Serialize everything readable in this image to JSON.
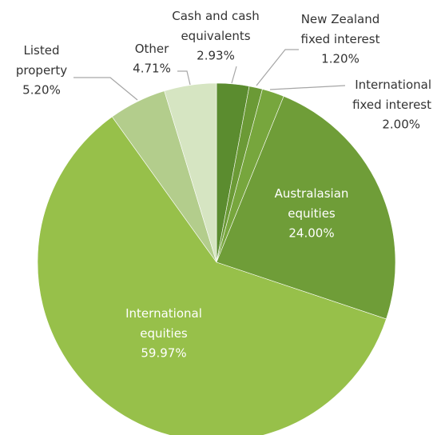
{
  "chart_data": {
    "type": "pie",
    "categories": [
      "Cash and cash\nequivalents",
      "New Zealand\nfixed interest",
      "International\nfixed interest",
      "Australasian\nequities",
      "International\nequities",
      "Listed\nproperty",
      "Other"
    ],
    "values": [
      2.93,
      1.2,
      2.0,
      24.0,
      59.97,
      5.2,
      4.71
    ],
    "value_labels": [
      "2.93%",
      "1.20%",
      "2.00%",
      "24.00%",
      "59.97%",
      "5.20%",
      "4.71%"
    ],
    "colors": [
      "#5b8c2f",
      "#6b9a36",
      "#77a63d",
      "#6f9d38",
      "#97c04a",
      "#b3cd8c",
      "#d6e5c2"
    ]
  }
}
